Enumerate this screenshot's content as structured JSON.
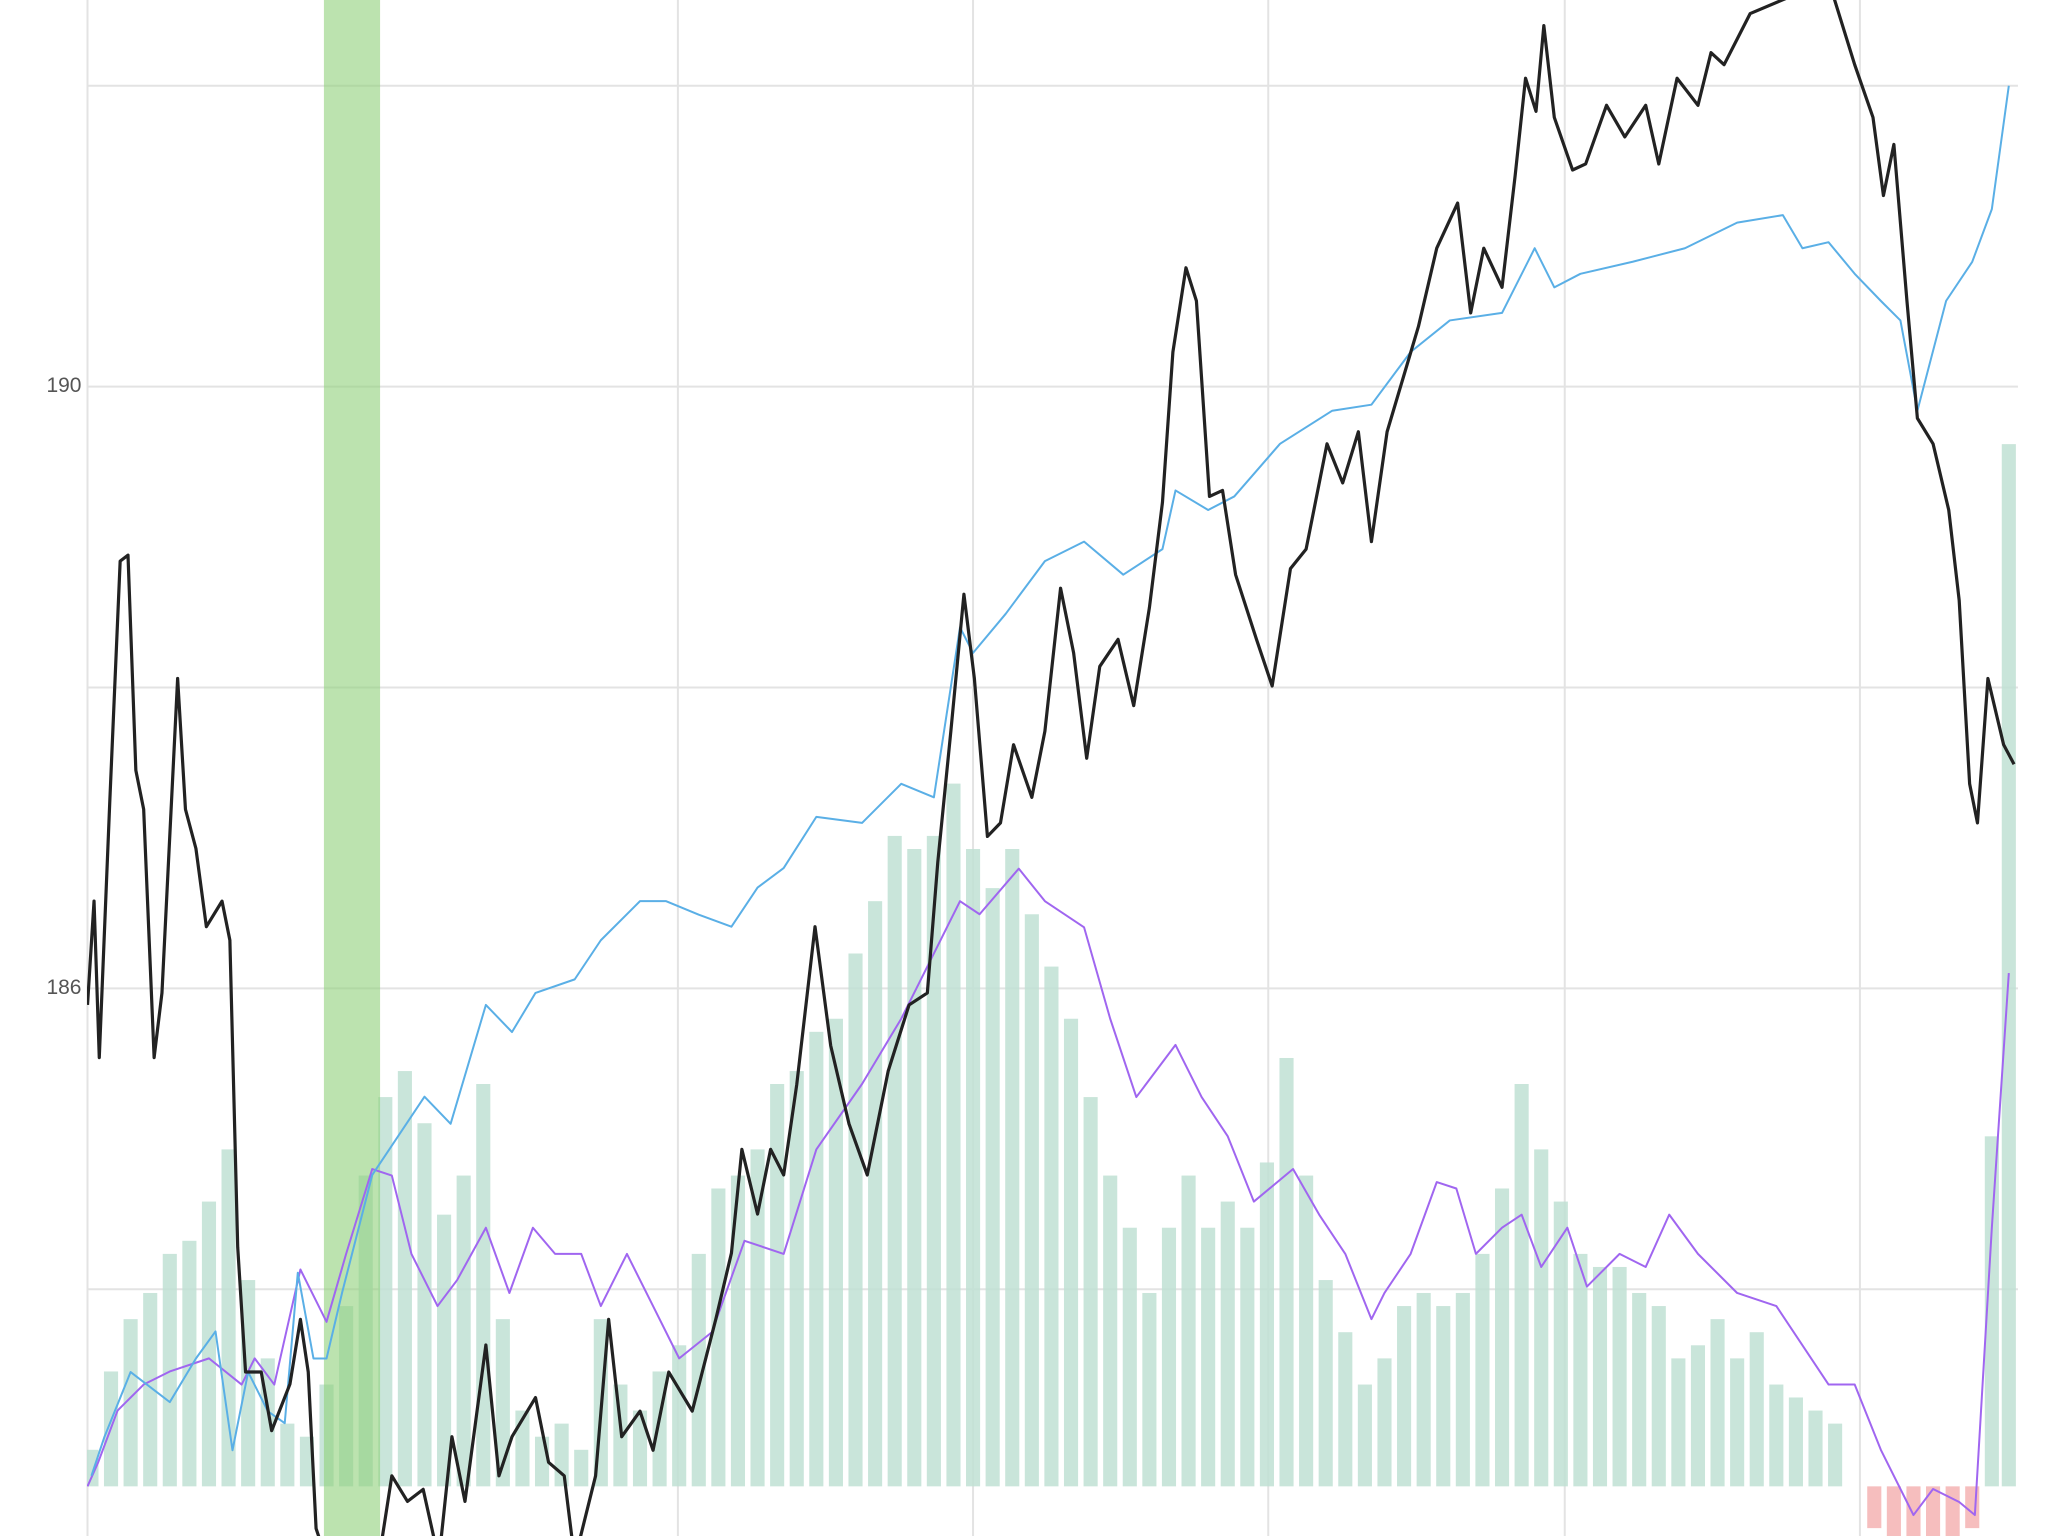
{
  "chart_data": {
    "type": "line",
    "xlim": [
      67,
      1545
    ],
    "ylim": [
      182.36,
      192.57
    ],
    "yticks": [
      186,
      190
    ],
    "minor_yticks": [
      184,
      188,
      192
    ],
    "xgrid": [
      67,
      519,
      745,
      971,
      1198,
      1424
    ],
    "y2lim": [
      -3.34,
      100
    ],
    "grid": true,
    "highlight": {
      "x": [
        248,
        291
      ],
      "color": "#8fd17a"
    },
    "series": [
      {
        "type": "bar",
        "axis": "y2",
        "color": "#bfe0d3",
        "negative_color": "#f4b3b3",
        "x": [
          70,
          85,
          100,
          115,
          130,
          145,
          160,
          175,
          190,
          205,
          220,
          235,
          250,
          265,
          280,
          295,
          310,
          325,
          340,
          355,
          370,
          385,
          400,
          415,
          430,
          445,
          460,
          475,
          490,
          505,
          520,
          535,
          550,
          565,
          580,
          595,
          610,
          625,
          640,
          655,
          670,
          685,
          700,
          715,
          730,
          745,
          760,
          775,
          790,
          805,
          820,
          835,
          850,
          865,
          880,
          895,
          910,
          925,
          940,
          955,
          970,
          985,
          1000,
          1015,
          1030,
          1045,
          1060,
          1075,
          1090,
          1105,
          1120,
          1135,
          1150,
          1165,
          1180,
          1195,
          1210,
          1225,
          1240,
          1255,
          1270,
          1285,
          1300,
          1315,
          1330,
          1345,
          1360,
          1375,
          1390,
          1405,
          1420,
          1435,
          1450,
          1465,
          1480,
          1495,
          1510,
          1525,
          1538
        ],
        "values": [
          2.46,
          7.73,
          11.25,
          13.01,
          15.64,
          16.52,
          19.16,
          22.67,
          13.88,
          8.61,
          4.22,
          3.34,
          6.85,
          12.13,
          20.91,
          26.19,
          27.94,
          24.43,
          18.28,
          20.91,
          27.07,
          11.25,
          5.1,
          3.34,
          4.22,
          2.46,
          11.25,
          6.85,
          5.1,
          7.73,
          9.49,
          15.64,
          20.04,
          20.91,
          22.67,
          27.07,
          27.94,
          30.58,
          31.46,
          35.85,
          39.37,
          43.76,
          42.88,
          43.76,
          47.28,
          42.88,
          40.25,
          42.88,
          38.49,
          34.97,
          31.46,
          26.19,
          20.91,
          17.4,
          13.01,
          17.4,
          20.91,
          17.4,
          19.16,
          17.4,
          21.79,
          28.82,
          20.91,
          13.88,
          10.37,
          6.85,
          8.61,
          12.13,
          13.01,
          12.13,
          13.01,
          15.64,
          20.04,
          27.07,
          22.67,
          19.16,
          15.64,
          14.76,
          14.76,
          13.01,
          12.13,
          8.61,
          9.49,
          11.25,
          8.61,
          10.37,
          6.85,
          5.98,
          5.1,
          4.22,
          0,
          -2.81,
          -3.34,
          -3.34,
          -3.34,
          -3.34,
          -2.81,
          23.55,
          70.12
        ]
      },
      {
        "type": "line",
        "axis": "y2",
        "color": "#a066f0",
        "width": 2,
        "x": [
          67,
          75,
          90,
          110,
          130,
          160,
          185,
          195,
          210,
          230,
          250,
          265,
          285,
          300,
          315,
          335,
          350,
          372,
          390,
          408,
          425,
          445,
          460,
          480,
          500,
          520,
          545,
          570,
          600,
          625,
          660,
          690,
          710,
          735,
          750,
          780,
          800,
          830,
          850,
          870,
          900,
          920,
          940,
          960,
          990,
          1010,
          1030,
          1050,
          1060,
          1080,
          1100,
          1115,
          1130,
          1150,
          1165,
          1180,
          1200,
          1215,
          1240,
          1260,
          1278,
          1300,
          1330,
          1360,
          1380,
          1400,
          1420,
          1440,
          1465,
          1480,
          1500,
          1512,
          1525,
          1538
        ],
        "values": [
          0,
          1.58,
          5.1,
          6.85,
          7.73,
          8.61,
          6.85,
          8.61,
          6.85,
          14.59,
          11.07,
          15.64,
          21.35,
          20.91,
          15.64,
          12.13,
          13.88,
          17.4,
          13.01,
          17.4,
          15.64,
          15.64,
          12.13,
          15.64,
          12.13,
          8.61,
          10.37,
          16.52,
          15.64,
          22.67,
          27.07,
          31.46,
          34.97,
          39.37,
          38.49,
          41.56,
          39.37,
          37.61,
          31.46,
          26.19,
          29.7,
          26.19,
          23.55,
          19.16,
          21.35,
          18.28,
          15.64,
          11.25,
          13.01,
          15.64,
          20.47,
          20.04,
          15.64,
          17.4,
          18.28,
          14.76,
          17.4,
          13.44,
          15.64,
          14.76,
          18.28,
          15.64,
          13.01,
          12.13,
          9.49,
          6.85,
          6.85,
          2.46,
          -1.93,
          -0.18,
          -1.05,
          -1.93,
          17.4,
          34.53
        ]
      },
      {
        "type": "line",
        "color": "#5aafe6",
        "width": 2,
        "x": [
          70,
          80,
          100,
          130,
          150,
          165,
          178,
          190,
          205,
          218,
          228,
          240,
          250,
          262,
          285,
          305,
          325,
          345,
          372,
          392,
          410,
          440,
          460,
          490,
          510,
          535,
          560,
          580,
          600,
          625,
          660,
          690,
          715,
          735,
          745,
          770,
          800,
          830,
          860,
          890,
          900,
          925,
          945,
          980,
          1020,
          1050,
          1080,
          1110,
          1150,
          1175,
          1190,
          1210,
          1250,
          1290,
          1330,
          1365,
          1380,
          1400,
          1420,
          1440,
          1455,
          1468,
          1490,
          1510,
          1525,
          1538
        ],
        "values": [
          182.76,
          183.02,
          183.45,
          183.25,
          183.54,
          183.72,
          182.93,
          183.45,
          183.19,
          183.11,
          184.11,
          183.54,
          183.54,
          183.98,
          184.76,
          185.02,
          185.28,
          185.1,
          185.89,
          185.71,
          185.97,
          186.06,
          186.32,
          186.58,
          186.58,
          186.49,
          186.41,
          186.67,
          186.8,
          187.14,
          187.1,
          187.36,
          187.27,
          188.4,
          188.23,
          188.49,
          188.84,
          188.97,
          188.75,
          188.92,
          189.31,
          189.18,
          189.27,
          189.62,
          189.84,
          189.88,
          190.23,
          190.44,
          190.49,
          190.92,
          190.66,
          190.75,
          190.83,
          190.92,
          191.09,
          191.14,
          190.92,
          190.96,
          190.75,
          190.57,
          190.44,
          189.84,
          190.57,
          190.83,
          191.18,
          192.0
        ]
      },
      {
        "type": "line",
        "color": "#222222",
        "width": 3.2,
        "x": [
          67,
          72,
          76,
          84,
          92,
          98,
          104,
          110,
          118,
          124,
          136,
          142,
          150,
          158,
          170,
          176,
          182,
          188,
          200,
          208,
          222,
          230,
          236,
          242,
          250,
          260,
          290,
          300,
          312,
          324,
          336,
          346,
          356,
          372,
          382,
          392,
          410,
          420,
          432,
          440,
          456,
          466,
          476,
          490,
          500,
          512,
          530,
          548,
          560,
          568,
          580,
          590,
          600,
          610,
          624,
          636,
          650,
          664,
          680,
          696,
          710,
          718,
          728,
          738,
          746,
          756,
          766,
          776,
          790,
          800,
          812,
          822,
          832,
          842,
          856,
          868,
          880,
          890,
          898,
          908,
          916,
          926,
          936,
          946,
          962,
          974,
          988,
          1000,
          1016,
          1028,
          1040,
          1050,
          1062,
          1074,
          1086,
          1100,
          1116,
          1126,
          1136,
          1150,
          1160,
          1168,
          1176,
          1182,
          1190,
          1204,
          1214,
          1230,
          1244,
          1260,
          1270,
          1284,
          1300,
          1310,
          1320,
          1330,
          1340,
          1400,
          1420,
          1434,
          1442,
          1450,
          1460,
          1468,
          1480,
          1492,
          1500,
          1508,
          1514,
          1522,
          1534,
          1542
        ],
        "values": [
          185.89,
          186.58,
          185.54,
          187.23,
          188.84,
          188.88,
          187.45,
          187.19,
          185.54,
          185.97,
          188.06,
          187.19,
          186.93,
          186.41,
          186.58,
          186.32,
          184.28,
          183.45,
          183.45,
          183.06,
          183.37,
          183.8,
          183.45,
          182.41,
          182.2,
          182.2,
          182.2,
          182.76,
          182.59,
          182.67,
          182.2,
          183.02,
          182.59,
          183.63,
          182.76,
          183.02,
          183.28,
          182.85,
          182.76,
          182.2,
          182.76,
          183.8,
          183.02,
          183.19,
          182.93,
          183.45,
          183.19,
          183.8,
          184.24,
          184.93,
          184.5,
          184.93,
          184.76,
          185.36,
          186.41,
          185.62,
          185.1,
          184.76,
          185.45,
          185.89,
          185.97,
          186.84,
          187.71,
          188.62,
          188.06,
          187.01,
          187.1,
          187.62,
          187.27,
          187.71,
          188.66,
          188.23,
          187.53,
          188.14,
          188.32,
          187.88,
          188.53,
          189.23,
          190.23,
          190.79,
          190.57,
          189.27,
          189.31,
          188.75,
          188.32,
          188.01,
          188.79,
          188.92,
          189.62,
          189.36,
          189.7,
          188.97,
          189.7,
          190.05,
          190.4,
          190.92,
          191.22,
          190.49,
          190.92,
          190.66,
          191.4,
          192.05,
          191.83,
          192.4,
          191.79,
          191.44,
          191.48,
          191.87,
          191.66,
          191.87,
          191.48,
          192.05,
          191.87,
          192.22,
          192.14,
          192.31,
          192.48,
          192.7,
          192.14,
          191.79,
          191.27,
          191.61,
          190.57,
          189.79,
          189.62,
          189.18,
          188.58,
          187.36,
          187.1,
          188.06,
          187.62,
          187.49
        ]
      }
    ]
  }
}
